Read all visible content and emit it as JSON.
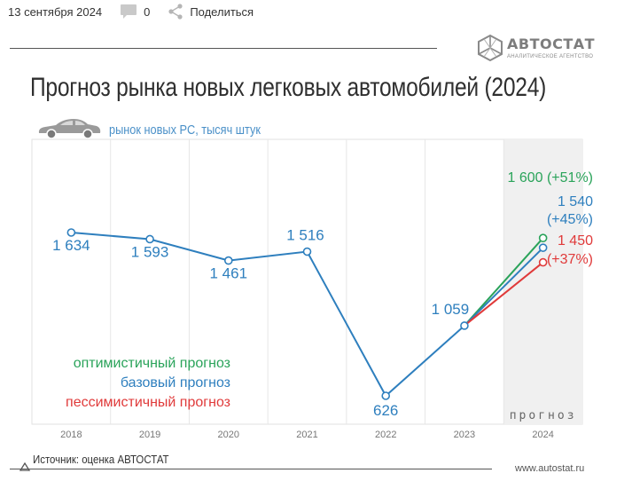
{
  "meta": {
    "date": "13 сентября 2024",
    "comments_count": "0",
    "share_label": "Поделиться",
    "comment_icon": "comment-icon",
    "share_icon": "share-icon"
  },
  "logo": {
    "name": "АВТОСТАТ",
    "tagline": "АНАЛИТИЧЕСКОЕ АГЕНТСТВО",
    "icon": "autostat-logo-icon"
  },
  "chart_data": {
    "type": "line",
    "title": "Прогноз рынка новых легковых автомобилей (2024)",
    "ylabel": "рынок новых PC, тысяч штук",
    "categories": [
      "2018",
      "2019",
      "2020",
      "2021",
      "2022",
      "2023",
      "2024"
    ],
    "ylim": [
      450,
      1750
    ],
    "grid": true,
    "legend_position": "bottom-left",
    "forecast_band_label": "прогноз",
    "colors": {
      "history": "#2e7fbe",
      "optimistic": "#2aa35a",
      "base": "#2e7fbe",
      "pessimistic": "#e03a3a"
    },
    "series": [
      {
        "name": "",
        "x": [
          "2018",
          "2019",
          "2020",
          "2021",
          "2022",
          "2023"
        ],
        "values": [
          1634,
          1593,
          1461,
          1516,
          626,
          1059
        ],
        "labels": [
          "1 634",
          "1 593",
          "1 461",
          "1 516",
          "626",
          "1 059"
        ]
      },
      {
        "name": "оптимистичный прогноз",
        "x": [
          "2023",
          "2024"
        ],
        "values": [
          1059,
          1600
        ],
        "end_label": "1 600 (+51%)"
      },
      {
        "name": "базовый прогноз",
        "x": [
          "2023",
          "2024"
        ],
        "values": [
          1059,
          1540
        ],
        "end_label": [
          "1 540",
          "(+45%)"
        ]
      },
      {
        "name": "пессимистичный прогноз",
        "x": [
          "2023",
          "2024"
        ],
        "values": [
          1059,
          1450
        ],
        "end_label": [
          "1 450",
          "(+37%)"
        ]
      }
    ]
  },
  "source": "Источник: оценка АВТОСТАТ",
  "site": "www.autostat.ru"
}
